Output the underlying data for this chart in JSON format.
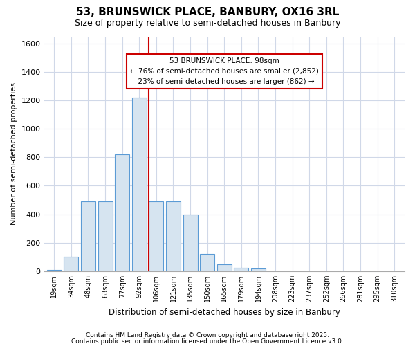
{
  "title1": "53, BRUNSWICK PLACE, BANBURY, OX16 3RL",
  "title2": "Size of property relative to semi-detached houses in Banbury",
  "xlabel": "Distribution of semi-detached houses by size in Banbury",
  "ylabel": "Number of semi-detached properties",
  "bins": [
    "19sqm",
    "34sqm",
    "48sqm",
    "63sqm",
    "77sqm",
    "92sqm",
    "106sqm",
    "121sqm",
    "135sqm",
    "150sqm",
    "165sqm",
    "179sqm",
    "194sqm",
    "208sqm",
    "223sqm",
    "237sqm",
    "252sqm",
    "266sqm",
    "281sqm",
    "295sqm",
    "310sqm"
  ],
  "values": [
    10,
    100,
    490,
    490,
    820,
    1220,
    490,
    490,
    400,
    120,
    50,
    25,
    20,
    0,
    0,
    0,
    0,
    0,
    0,
    0,
    0
  ],
  "bar_color": "#d6e4f0",
  "bar_edge_color": "#5b9bd5",
  "property_size": "98sqm",
  "property_line_bin_idx": 6,
  "pct_smaller": 76,
  "n_smaller": 2852,
  "pct_larger": 23,
  "n_larger": 862,
  "annotation_box_color": "#ffffff",
  "annotation_box_edge": "#cc0000",
  "vline_color": "#cc0000",
  "ylim": [
    0,
    1650
  ],
  "yticks": [
    0,
    200,
    400,
    600,
    800,
    1000,
    1200,
    1400,
    1600
  ],
  "background_color": "#ffffff",
  "grid_color": "#d0d8e8",
  "footer1": "Contains HM Land Registry data © Crown copyright and database right 2025.",
  "footer2": "Contains public sector information licensed under the Open Government Licence v3.0."
}
